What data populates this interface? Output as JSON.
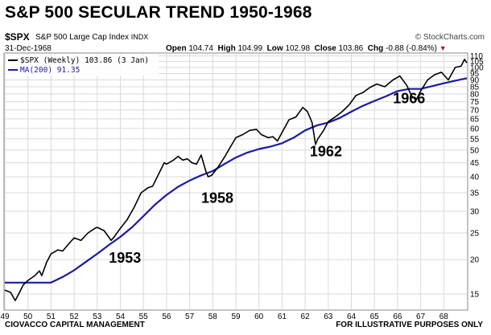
{
  "header": {
    "headline": "S&P 500 SECULAR TREND 1950-1968",
    "symbol": "$SPX",
    "symbol_desc": "S&P 500 Large Cap Index",
    "exchange": "INDX",
    "logo": "© StockCharts.com",
    "as_of": "31-Dec-1968",
    "quote": {
      "open_label": "Open",
      "open": "104.74",
      "high_label": "High",
      "high": "104.99",
      "low_label": "Low",
      "low": "102.98",
      "close_label": "Close",
      "close": "103.86",
      "chg_label": "Chg",
      "chg": "-0.88 (-0.84%)"
    }
  },
  "footer": {
    "left": "CIOVACCO CAPITAL MANAGEMENT",
    "right": "FOR ILLUSTRATIVE PURPOSES ONLY"
  },
  "colors": {
    "price_line": "#000000",
    "ma_line": "#1a1aa0",
    "grid": "#d9d9d9",
    "change_marker": "#b0182a"
  },
  "chart_data": {
    "type": "line",
    "x_tick_labels": [
      "49",
      "50",
      "51",
      "52",
      "53",
      "54",
      "55",
      "56",
      "57",
      "58",
      "59",
      "60",
      "61",
      "62",
      "63",
      "64",
      "65",
      "66",
      "67",
      "68"
    ],
    "x_tick_years": [
      1949,
      1950,
      1951,
      1952,
      1953,
      1954,
      1955,
      1956,
      1957,
      1958,
      1959,
      1960,
      1961,
      1962,
      1963,
      1964,
      1965,
      1966,
      1967,
      1968
    ],
    "xlim": [
      1949.0,
      1969.0
    ],
    "y_scale": "log",
    "ylim": [
      13.2,
      112
    ],
    "y_tick_labels": [
      "15",
      "20",
      "25",
      "30",
      "35",
      "40",
      "45",
      "50",
      "55",
      "60",
      "65",
      "70",
      "75",
      "80",
      "85",
      "90",
      "95",
      "100",
      "105",
      "110"
    ],
    "y_tick_values": [
      15,
      20,
      25,
      30,
      35,
      40,
      45,
      50,
      55,
      60,
      65,
      70,
      75,
      80,
      85,
      90,
      95,
      100,
      105,
      110
    ],
    "grid": true,
    "legend_position": "top-left",
    "series": [
      {
        "name": "$SPX (Weekly) 103.86 (3 Jan)",
        "x": [
          1949.0,
          1949.25,
          1949.45,
          1949.6,
          1949.8,
          1950.0,
          1950.3,
          1950.5,
          1950.6,
          1950.8,
          1951.0,
          1951.3,
          1951.5,
          1951.8,
          1952.0,
          1952.3,
          1952.6,
          1952.9,
          1953.0,
          1953.3,
          1953.6,
          1953.7,
          1954.0,
          1954.3,
          1954.6,
          1954.9,
          1955.2,
          1955.4,
          1955.6,
          1955.9,
          1956.0,
          1956.3,
          1956.5,
          1956.7,
          1956.9,
          1957.1,
          1957.3,
          1957.5,
          1957.7,
          1957.8,
          1957.95,
          1958.2,
          1958.5,
          1958.8,
          1959.0,
          1959.3,
          1959.6,
          1959.9,
          1960.1,
          1960.4,
          1960.6,
          1960.8,
          1961.0,
          1961.3,
          1961.6,
          1961.9,
          1962.1,
          1962.3,
          1962.45,
          1962.55,
          1962.8,
          1963.0,
          1963.3,
          1963.6,
          1963.9,
          1964.2,
          1964.5,
          1964.8,
          1965.1,
          1965.45,
          1965.8,
          1966.1,
          1966.4,
          1966.6,
          1966.8,
          1967.0,
          1967.3,
          1967.6,
          1967.9,
          1968.2,
          1968.5,
          1968.75,
          1968.9,
          1969.0
        ],
        "y": [
          15.5,
          15.2,
          14.2,
          15.0,
          16.2,
          16.8,
          17.5,
          18.2,
          17.5,
          19.5,
          21.0,
          21.7,
          21.5,
          23.0,
          24.0,
          23.5,
          25.0,
          26.0,
          26.2,
          25.5,
          23.5,
          24.0,
          26.0,
          28.0,
          31.0,
          35.0,
          36.5,
          37.0,
          40.0,
          45.0,
          44.5,
          46.0,
          47.5,
          46.0,
          46.5,
          45.0,
          44.5,
          48.0,
          42.0,
          40.0,
          40.5,
          43.0,
          47.0,
          52.0,
          55.5,
          57.0,
          59.0,
          59.5,
          57.0,
          55.5,
          56.0,
          54.0,
          58.0,
          64.5,
          66.0,
          71.5,
          69.0,
          63.0,
          52.5,
          55.0,
          59.0,
          63.5,
          66.0,
          69.0,
          73.0,
          79.0,
          81.0,
          84.5,
          87.0,
          85.0,
          90.0,
          93.0,
          86.0,
          79.0,
          76.0,
          82.0,
          90.0,
          94.0,
          96.0,
          90.0,
          100.0,
          101.0,
          107.0,
          103.86
        ]
      },
      {
        "name": "MA(200) 91.35",
        "x": [
          1949.0,
          1949.5,
          1950.0,
          1950.5,
          1951.0,
          1951.5,
          1952.0,
          1952.5,
          1953.0,
          1953.5,
          1954.0,
          1954.5,
          1955.0,
          1955.5,
          1956.0,
          1956.5,
          1957.0,
          1957.5,
          1958.0,
          1958.5,
          1959.0,
          1959.5,
          1960.0,
          1960.5,
          1961.0,
          1961.5,
          1962.0,
          1962.5,
          1963.0,
          1963.5,
          1964.0,
          1964.5,
          1965.0,
          1965.5,
          1966.0,
          1966.5,
          1967.0,
          1967.5,
          1968.0,
          1968.5,
          1969.0
        ],
        "y": [
          16.5,
          16.5,
          16.5,
          16.5,
          16.5,
          17.3,
          18.3,
          19.6,
          21.0,
          22.6,
          24.2,
          26.2,
          28.8,
          31.7,
          34.4,
          36.8,
          38.8,
          40.5,
          42.0,
          44.5,
          47.0,
          49.0,
          50.5,
          51.5,
          53.0,
          55.5,
          59.0,
          61.5,
          63.0,
          65.5,
          69.0,
          72.5,
          75.5,
          78.5,
          82.0,
          83.5,
          83.5,
          85.5,
          87.5,
          89.5,
          91.35
        ]
      }
    ],
    "annotations": [
      {
        "text": "1953",
        "x": 1954.2,
        "y": 19.5
      },
      {
        "text": "1958",
        "x": 1958.2,
        "y": 32.2
      },
      {
        "text": "1962",
        "x": 1962.9,
        "y": 47.5
      },
      {
        "text": "1966",
        "x": 1966.5,
        "y": 74.0
      }
    ]
  }
}
